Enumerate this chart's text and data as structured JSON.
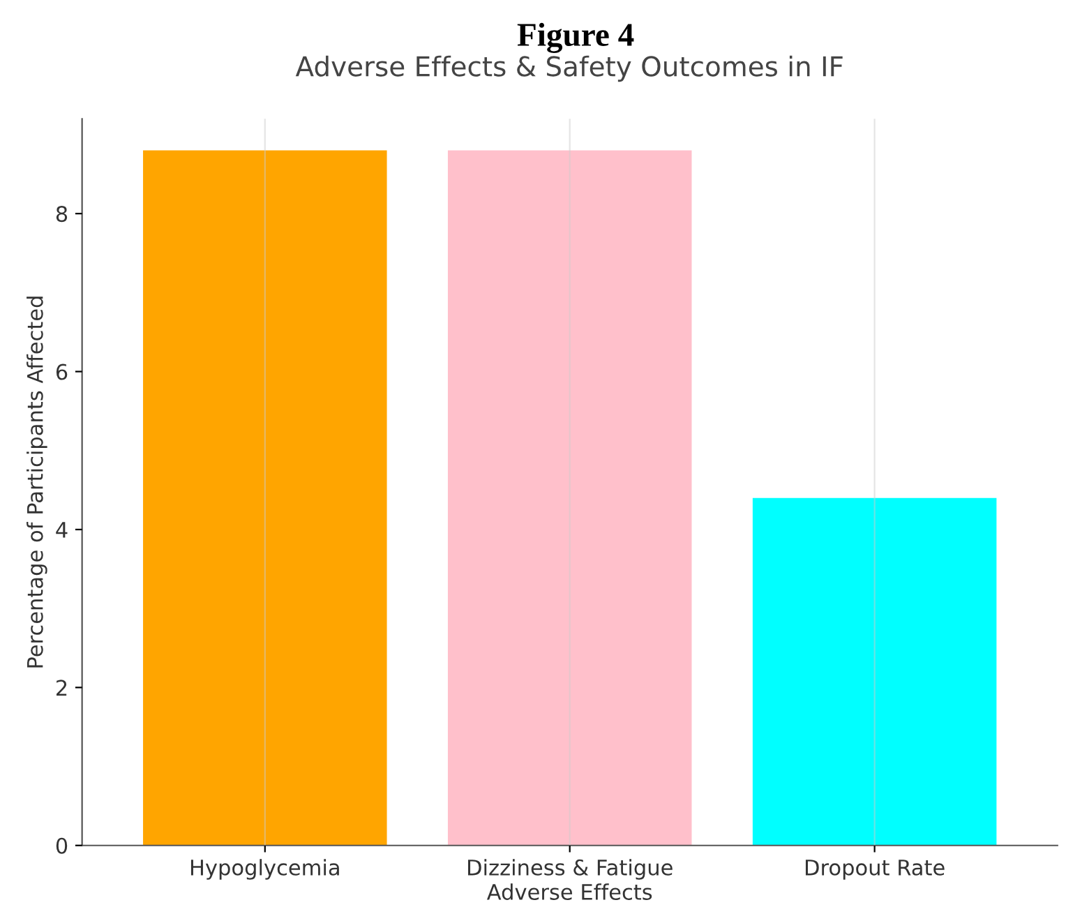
{
  "chart_data": {
    "type": "bar",
    "title": "Figure 4",
    "subtitle": "Adverse Effects & Safety Outcomes in IF",
    "xlabel": "Adverse Effects",
    "ylabel": "Percentage of Participants Affected",
    "categories": [
      "Hypoglycemia",
      "Dizziness & Fatigue",
      "Dropout Rate"
    ],
    "values": [
      8.8,
      8.8,
      4.4
    ],
    "colors": [
      "#ffa500",
      "#ffc0cb",
      "#00ffff"
    ],
    "ylim": [
      0,
      9.2
    ],
    "yticks": [
      0,
      2,
      4,
      6,
      8
    ],
    "grid": "x"
  }
}
